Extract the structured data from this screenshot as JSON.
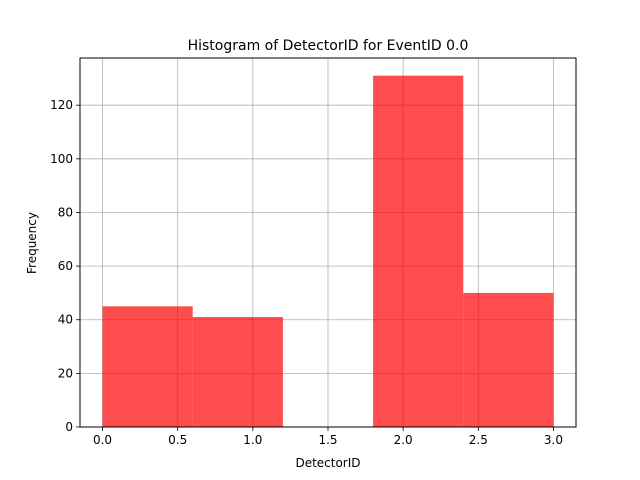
{
  "chart_data": {
    "type": "bar",
    "title": "Histogram of DetectorID for EventID 0.0",
    "xlabel": "DetectorID",
    "ylabel": "Frequency",
    "xlim": [
      -0.15,
      3.15
    ],
    "ylim": [
      0,
      137.6
    ],
    "grid": true,
    "bar_color": "#ff0000",
    "bar_opacity": 0.7,
    "x_ticks": [
      0.0,
      0.5,
      1.0,
      1.5,
      2.0,
      2.5,
      3.0
    ],
    "x_tick_labels": [
      "0.0",
      "0.5",
      "1.0",
      "1.5",
      "2.0",
      "2.5",
      "3.0"
    ],
    "y_ticks": [
      0,
      20,
      40,
      60,
      80,
      100,
      120
    ],
    "y_tick_labels": [
      "0",
      "20",
      "40",
      "60",
      "80",
      "100",
      "120"
    ],
    "bins": [
      {
        "start": 0.0,
        "end": 0.6,
        "value": 45
      },
      {
        "start": 0.6,
        "end": 1.2,
        "value": 41
      },
      {
        "start": 1.2,
        "end": 1.8,
        "value": 0
      },
      {
        "start": 1.8,
        "end": 2.4,
        "value": 131
      },
      {
        "start": 2.4,
        "end": 3.0,
        "value": 50
      }
    ]
  }
}
